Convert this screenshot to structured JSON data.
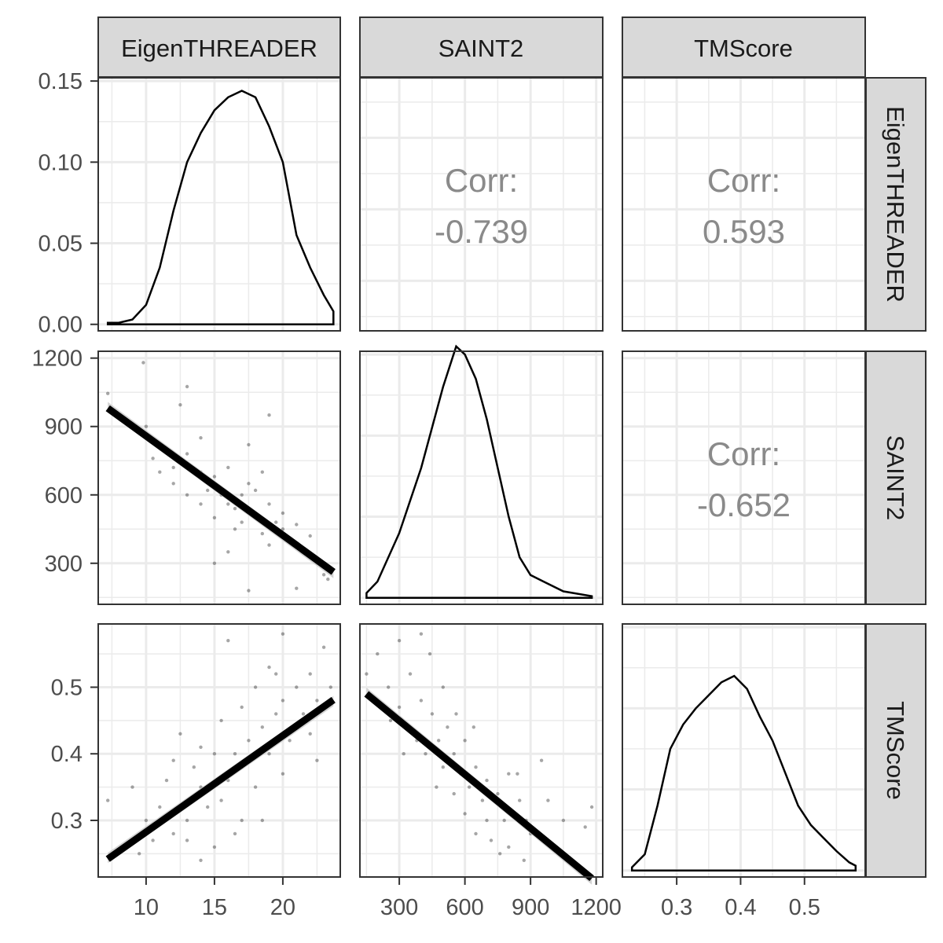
{
  "variables": [
    "EigenTHREADER",
    "SAINT2",
    "TMScore"
  ],
  "chart_data": {
    "type": "scatter-matrix",
    "variables": [
      "EigenTHREADER",
      "SAINT2",
      "TMScore"
    ],
    "axes": {
      "EigenTHREADER": {
        "range": [
          6.5,
          24.2
        ],
        "ticks": [
          10,
          15,
          20
        ],
        "tick_labels": [
          "10",
          "15",
          "20"
        ]
      },
      "SAINT2": {
        "range": [
          120,
          1230
        ],
        "ticks": [
          300,
          600,
          900,
          1200
        ],
        "tick_labels": [
          "300",
          "600",
          "900",
          "1200"
        ]
      },
      "TMScore": {
        "range": [
          0.215,
          0.595
        ],
        "ticks": [
          0.3,
          0.4,
          0.5
        ],
        "tick_labels": [
          "0.3",
          "0.4",
          "0.5"
        ]
      },
      "density_y": {
        "range": [
          -0.004,
          0.152
        ],
        "ticks": [
          0,
          0.05,
          0.1,
          0.15
        ],
        "tick_labels": [
          "0.00",
          "0.05",
          "0.10",
          "0.15"
        ]
      }
    },
    "correlations": [
      {
        "x": "SAINT2",
        "y": "EigenTHREADER",
        "label": "Corr:",
        "value": "-0.739"
      },
      {
        "x": "TMScore",
        "y": "EigenTHREADER",
        "label": "Corr:",
        "value": "0.593"
      },
      {
        "x": "TMScore",
        "y": "SAINT2",
        "label": "Corr:",
        "value": "-0.652"
      }
    ],
    "densities": {
      "EigenTHREADER": [
        [
          7.2,
          0.001
        ],
        [
          8,
          0.001
        ],
        [
          9,
          0.003
        ],
        [
          10,
          0.012
        ],
        [
          11,
          0.035
        ],
        [
          12,
          0.07
        ],
        [
          13,
          0.1
        ],
        [
          14,
          0.118
        ],
        [
          15,
          0.132
        ],
        [
          16,
          0.14
        ],
        [
          17,
          0.144
        ],
        [
          18,
          0.14
        ],
        [
          19,
          0.122
        ],
        [
          20,
          0.1
        ],
        [
          21,
          0.055
        ],
        [
          22,
          0.035
        ],
        [
          23,
          0.018
        ],
        [
          23.7,
          0.008
        ]
      ],
      "SAINT2": [
        [
          150,
          0.003
        ],
        [
          200,
          0.01
        ],
        [
          300,
          0.04
        ],
        [
          400,
          0.08
        ],
        [
          500,
          0.13
        ],
        [
          560,
          0.155
        ],
        [
          600,
          0.15
        ],
        [
          650,
          0.135
        ],
        [
          700,
          0.11
        ],
        [
          750,
          0.08
        ],
        [
          800,
          0.05
        ],
        [
          850,
          0.025
        ],
        [
          900,
          0.014
        ],
        [
          960,
          0.01
        ],
        [
          1050,
          0.004
        ],
        [
          1180,
          0.001
        ]
      ],
      "TMScore": [
        [
          0.23,
          0.002
        ],
        [
          0.25,
          0.01
        ],
        [
          0.27,
          0.04
        ],
        [
          0.29,
          0.075
        ],
        [
          0.31,
          0.09
        ],
        [
          0.33,
          0.1
        ],
        [
          0.35,
          0.108
        ],
        [
          0.37,
          0.116
        ],
        [
          0.39,
          0.12
        ],
        [
          0.41,
          0.112
        ],
        [
          0.43,
          0.095
        ],
        [
          0.45,
          0.08
        ],
        [
          0.47,
          0.06
        ],
        [
          0.49,
          0.04
        ],
        [
          0.51,
          0.028
        ],
        [
          0.53,
          0.02
        ],
        [
          0.55,
          0.012
        ],
        [
          0.57,
          0.005
        ],
        [
          0.58,
          0.003
        ]
      ]
    },
    "regressions": {
      "SAINT2_vs_EigenTHREADER": {
        "x": [
          7.2,
          23.7
        ],
        "y": [
          980,
          262
        ]
      },
      "TMScore_vs_EigenTHREADER": {
        "x": [
          7.2,
          23.7
        ],
        "y": [
          0.242,
          0.481
        ]
      },
      "TMScore_vs_SAINT2": {
        "x": [
          150,
          1180
        ],
        "y": [
          0.49,
          0.213
        ]
      }
    },
    "scatter": {
      "EigenTHREADER_SAINT2": [
        [
          7.2,
          1045
        ],
        [
          9.8,
          1180
        ],
        [
          13,
          1075
        ],
        [
          12.5,
          995
        ],
        [
          14,
          850
        ],
        [
          19,
          950
        ],
        [
          10.5,
          760
        ],
        [
          11.5,
          800
        ],
        [
          12,
          720
        ],
        [
          13,
          780
        ],
        [
          14,
          700
        ],
        [
          14.5,
          620
        ],
        [
          15,
          680
        ],
        [
          15.5,
          600
        ],
        [
          16,
          560
        ],
        [
          16,
          720
        ],
        [
          16.5,
          540
        ],
        [
          17,
          600
        ],
        [
          17,
          480
        ],
        [
          17.5,
          820
        ],
        [
          17.5,
          650
        ],
        [
          18,
          500
        ],
        [
          18,
          620
        ],
        [
          18.5,
          700
        ],
        [
          18.5,
          430
        ],
        [
          19,
          560
        ],
        [
          19.5,
          480
        ],
        [
          20,
          450
        ],
        [
          20.5,
          400
        ],
        [
          21,
          470
        ],
        [
          21.5,
          350
        ],
        [
          22,
          330
        ],
        [
          22.5,
          300
        ],
        [
          23,
          250
        ],
        [
          23.3,
          230
        ],
        [
          21,
          190
        ],
        [
          17.5,
          180
        ],
        [
          15,
          300
        ],
        [
          16,
          350
        ],
        [
          13,
          600
        ],
        [
          12,
          650
        ],
        [
          11,
          700
        ],
        [
          14,
          560
        ],
        [
          15,
          500
        ],
        [
          16.5,
          450
        ],
        [
          19,
          380
        ],
        [
          20,
          520
        ],
        [
          22,
          420
        ],
        [
          23.5,
          280
        ],
        [
          10,
          900
        ]
      ],
      "EigenTHREADER_TMScore": [
        [
          7.2,
          0.33
        ],
        [
          9,
          0.35
        ],
        [
          9.5,
          0.25
        ],
        [
          10,
          0.3
        ],
        [
          11,
          0.32
        ],
        [
          11.5,
          0.36
        ],
        [
          12,
          0.28
        ],
        [
          12.5,
          0.43
        ],
        [
          13,
          0.3
        ],
        [
          13.5,
          0.38
        ],
        [
          14,
          0.35
        ],
        [
          14.5,
          0.32
        ],
        [
          15,
          0.4
        ],
        [
          15,
          0.26
        ],
        [
          15.5,
          0.45
        ],
        [
          16,
          0.36
        ],
        [
          16,
          0.57
        ],
        [
          16.5,
          0.4
        ],
        [
          17,
          0.38
        ],
        [
          17,
          0.47
        ],
        [
          17.5,
          0.42
        ],
        [
          18,
          0.35
        ],
        [
          18,
          0.5
        ],
        [
          18.5,
          0.44
        ],
        [
          19,
          0.4
        ],
        [
          19,
          0.53
        ],
        [
          19.5,
          0.46
        ],
        [
          20,
          0.48
        ],
        [
          20,
          0.58
        ],
        [
          20.5,
          0.42
        ],
        [
          21,
          0.5
        ],
        [
          21.5,
          0.46
        ],
        [
          22,
          0.52
        ],
        [
          22.5,
          0.48
        ],
        [
          23,
          0.56
        ],
        [
          23.5,
          0.5
        ],
        [
          14,
          0.24
        ],
        [
          13,
          0.27
        ],
        [
          17,
          0.3
        ],
        [
          18.5,
          0.3
        ],
        [
          20,
          0.37
        ],
        [
          22,
          0.43
        ],
        [
          12,
          0.39
        ],
        [
          15.5,
          0.33
        ],
        [
          16.5,
          0.28
        ],
        [
          19.5,
          0.52
        ],
        [
          21,
          0.44
        ],
        [
          10.5,
          0.27
        ],
        [
          14,
          0.41
        ],
        [
          22.5,
          0.39
        ]
      ],
      "SAINT2_TMScore": [
        [
          150,
          0.52
        ],
        [
          200,
          0.55
        ],
        [
          250,
          0.5
        ],
        [
          300,
          0.57
        ],
        [
          300,
          0.47
        ],
        [
          350,
          0.52
        ],
        [
          350,
          0.44
        ],
        [
          400,
          0.58
        ],
        [
          400,
          0.48
        ],
        [
          420,
          0.4
        ],
        [
          450,
          0.46
        ],
        [
          480,
          0.42
        ],
        [
          500,
          0.38
        ],
        [
          500,
          0.5
        ],
        [
          520,
          0.44
        ],
        [
          550,
          0.4
        ],
        [
          550,
          0.34
        ],
        [
          580,
          0.37
        ],
        [
          600,
          0.42
        ],
        [
          600,
          0.31
        ],
        [
          620,
          0.35
        ],
        [
          650,
          0.38
        ],
        [
          650,
          0.28
        ],
        [
          680,
          0.33
        ],
        [
          700,
          0.36
        ],
        [
          700,
          0.3
        ],
        [
          720,
          0.27
        ],
        [
          750,
          0.34
        ],
        [
          780,
          0.3
        ],
        [
          800,
          0.37
        ],
        [
          800,
          0.26
        ],
        [
          850,
          0.33
        ],
        [
          880,
          0.3
        ],
        [
          900,
          0.28
        ],
        [
          950,
          0.39
        ],
        [
          980,
          0.33
        ],
        [
          1000,
          0.26
        ],
        [
          1050,
          0.3
        ],
        [
          1180,
          0.32
        ],
        [
          1150,
          0.29
        ],
        [
          870,
          0.24
        ],
        [
          760,
          0.25
        ],
        [
          640,
          0.44
        ],
        [
          560,
          0.46
        ],
        [
          470,
          0.35
        ],
        [
          380,
          0.42
        ],
        [
          320,
          0.4
        ],
        [
          260,
          0.45
        ],
        [
          440,
          0.55
        ],
        [
          840,
          0.37
        ]
      ]
    }
  }
}
